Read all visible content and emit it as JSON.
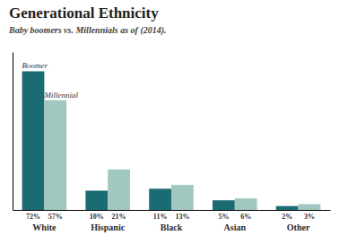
{
  "chart_data": {
    "type": "bar",
    "title": "Generational Ethnicity",
    "subtitle": "Baby boomers vs. Millennials as of (2014).",
    "categories": [
      "White",
      "Hispanic",
      "Black",
      "Asian",
      "Other"
    ],
    "series": [
      {
        "name": "Boomer",
        "color": "#1b6b72",
        "values": [
          72,
          10,
          11,
          5,
          2
        ],
        "value_labels": [
          "72%",
          "10%",
          "11%",
          "5%",
          "2%"
        ]
      },
      {
        "name": "Millennial",
        "color": "#a0c8c0",
        "values": [
          57,
          21,
          13,
          6,
          3
        ],
        "value_labels": [
          "57%",
          "21%",
          "13%",
          "6%",
          "3%"
        ]
      }
    ],
    "ylim": [
      0,
      82
    ],
    "grid": false,
    "data_labels": true,
    "tick_labels": "x"
  }
}
